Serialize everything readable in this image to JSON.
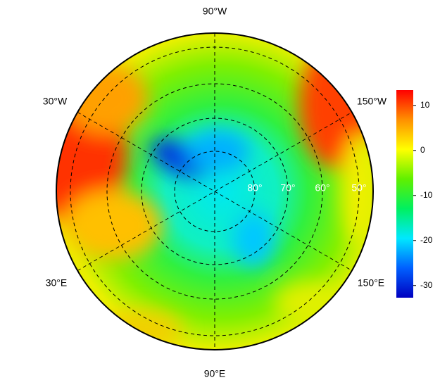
{
  "map": {
    "meridian_labels": [
      "90°W",
      "30°W",
      "150°W",
      "30°E",
      "150°E",
      "90°E"
    ],
    "latitude_labels": [
      "80°",
      "70°",
      "60°",
      "50°"
    ],
    "colorbar": {
      "lim": [
        -32.7,
        13.4
      ],
      "ticks": [
        10,
        0,
        -10,
        -20,
        -30
      ],
      "colors": [
        "#0000c0",
        "#0060ff",
        "#00e8ff",
        "#00f060",
        "#60f000",
        "#ffff00",
        "#ff9000",
        "#ff0000"
      ]
    }
  }
}
